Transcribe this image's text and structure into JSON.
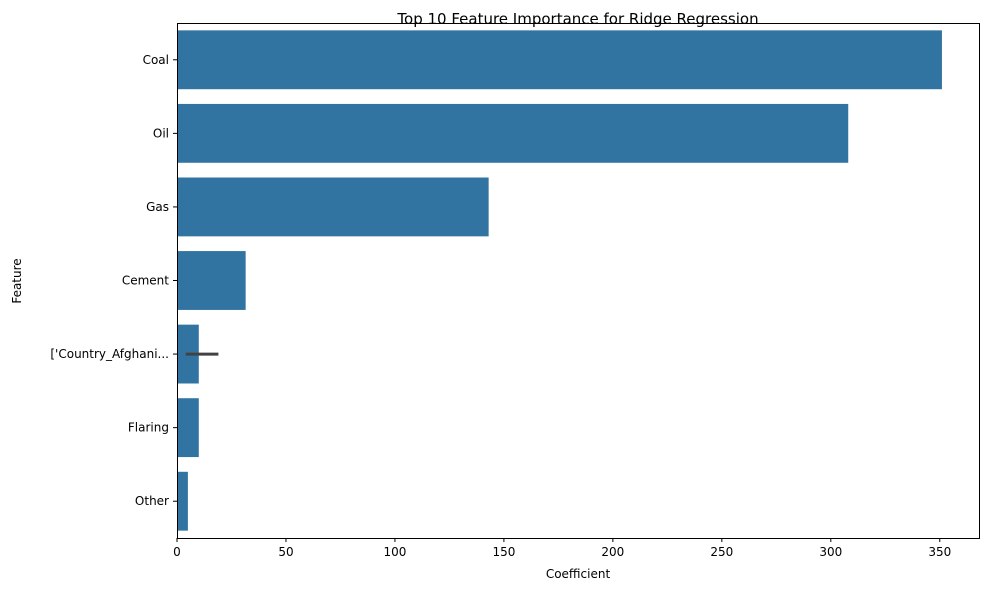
{
  "chart_data": {
    "type": "bar",
    "orientation": "horizontal",
    "title": "Top 10 Feature Importance for Ridge Regression",
    "xlabel": "Coefficient",
    "ylabel": "Feature",
    "categories": [
      "Coal",
      "Oil",
      "Gas",
      "Cement",
      "['Country_Afghani...",
      "Flaring",
      "Other"
    ],
    "values": [
      351,
      308,
      143,
      31.5,
      10,
      10,
      5
    ],
    "error_bars": [
      null,
      null,
      null,
      null,
      [
        4,
        19
      ],
      null,
      null
    ],
    "xlim": [
      0,
      368
    ],
    "xticks": [
      0,
      50,
      100,
      150,
      200,
      250,
      300,
      350
    ],
    "bar_color": "#3274a1",
    "error_bar_color": "#424242",
    "grid": false,
    "legend": false
  }
}
